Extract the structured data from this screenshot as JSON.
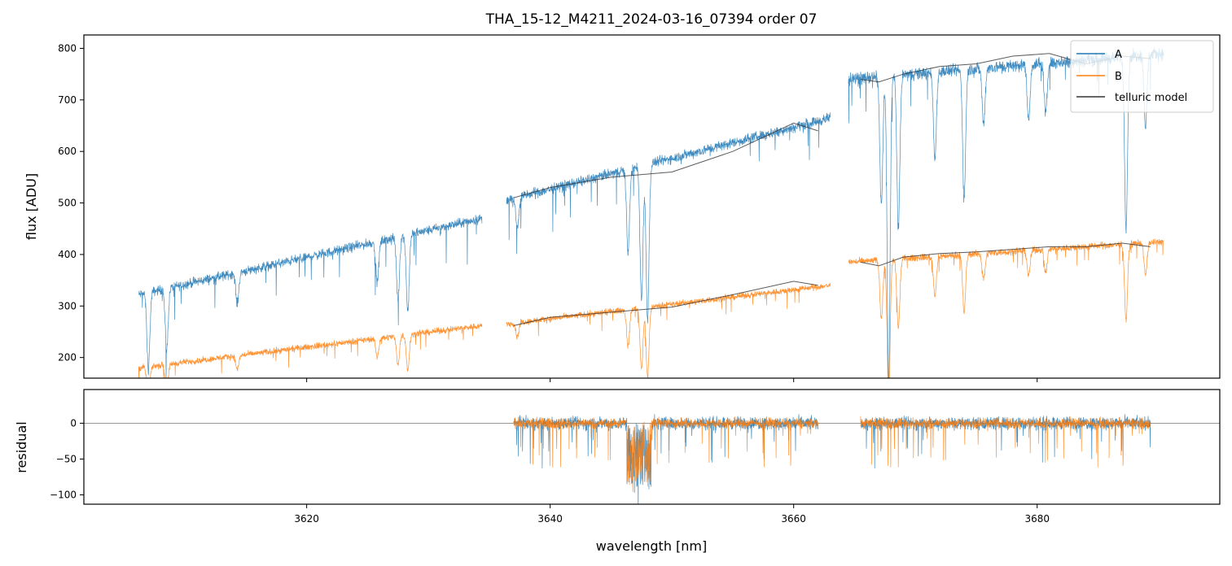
{
  "chart_data": {
    "type": "line",
    "title": "THA_15-12_M4211_2024-03-16_07394  order 07",
    "xlabel": "wavelength [nm]",
    "colors": {
      "A": "#1f77b4",
      "B": "#ff7f0e",
      "telluric model": "#333333",
      "zero_line": "#888888"
    },
    "legend": {
      "placement": "top-right",
      "entries": [
        "A",
        "B",
        "telluric model"
      ]
    },
    "xlim": [
      3601.7,
      3695.0
    ],
    "xticks": [
      3620,
      3640,
      3660,
      3680
    ],
    "xtick_labels": [
      "3620",
      "3640",
      "3660",
      "3680"
    ],
    "panels": [
      {
        "name": "flux",
        "ylabel": "flux [ADU]",
        "ylim": [
          160,
          826
        ],
        "yticks": [
          200,
          300,
          400,
          500,
          600,
          700,
          800
        ],
        "ytick_labels": [
          "200",
          "300",
          "400",
          "500",
          "600",
          "700",
          "800"
        ],
        "segments": [
          {
            "x_range": [
              3606.2,
              3634.4
            ],
            "A_start": 322,
            "A_end": 470,
            "B_start": 180,
            "B_end": 262,
            "noise_A": 14,
            "noise_B": 9
          },
          {
            "x_range": [
              3636.4,
              3663.0
            ],
            "A_start": 505,
            "A_end": 665,
            "B_start": 265,
            "B_end": 340,
            "noise_A": 15,
            "noise_B": 9
          },
          {
            "x_range": [
              3664.5,
              3690.4
            ],
            "A_start": 740,
            "A_end": 790,
            "B_start": 385,
            "B_end": 425,
            "noise_A": 18,
            "noise_B": 10
          }
        ],
        "A_dips": [
          {
            "x": 3607.0,
            "depth": 150
          },
          {
            "x": 3608.5,
            "depth": 120
          },
          {
            "x": 3614.3,
            "depth": 60
          },
          {
            "x": 3625.8,
            "depth": 80
          },
          {
            "x": 3627.5,
            "depth": 120
          },
          {
            "x": 3628.3,
            "depth": 150
          },
          {
            "x": 3637.3,
            "depth": 60
          },
          {
            "x": 3646.4,
            "depth": 160
          },
          {
            "x": 3647.5,
            "depth": 260
          },
          {
            "x": 3648.0,
            "depth": 300
          },
          {
            "x": 3667.2,
            "depth": 250
          },
          {
            "x": 3667.8,
            "depth": 600
          },
          {
            "x": 3668.6,
            "depth": 300
          },
          {
            "x": 3671.6,
            "depth": 170
          },
          {
            "x": 3674.0,
            "depth": 250
          },
          {
            "x": 3675.6,
            "depth": 110
          },
          {
            "x": 3679.3,
            "depth": 110
          },
          {
            "x": 3680.7,
            "depth": 100
          },
          {
            "x": 3687.3,
            "depth": 330
          },
          {
            "x": 3688.9,
            "depth": 140
          }
        ],
        "telluric_A": {
          "x": [
            3637.0,
            3640.0,
            3645.0,
            3650.0,
            3655.0,
            3660.0,
            3662.0,
            3665.5,
            3667.0,
            3669.0,
            3672.0,
            3675.0,
            3678.0,
            3681.0,
            3684.0,
            3687.0,
            3689.3
          ],
          "y": [
            510,
            530,
            550,
            560,
            600,
            655,
            640,
            740,
            735,
            750,
            765,
            770,
            785,
            790,
            770,
            785,
            780
          ]
        },
        "telluric_B": {
          "x": [
            3637.0,
            3640.0,
            3645.0,
            3650.0,
            3655.0,
            3660.0,
            3662.0,
            3665.5,
            3667.0,
            3669.0,
            3672.0,
            3675.0,
            3678.0,
            3681.0,
            3684.0,
            3687.0,
            3689.3
          ],
          "y": [
            262,
            278,
            288,
            298,
            322,
            348,
            340,
            385,
            378,
            395,
            402,
            405,
            410,
            415,
            415,
            422,
            415
          ]
        }
      },
      {
        "name": "residual",
        "ylabel": "residual",
        "ylim": [
          -113,
          47
        ],
        "yticks": [
          -100,
          -50,
          0
        ],
        "ytick_labels": [
          "−100",
          "−50",
          "0"
        ],
        "zero_line": 0,
        "segments": [
          {
            "x_range": [
              3637.0,
              3662.0
            ],
            "noise": 12
          },
          {
            "x_range": [
              3665.5,
              3689.3
            ],
            "noise": 12
          }
        ]
      }
    ]
  }
}
